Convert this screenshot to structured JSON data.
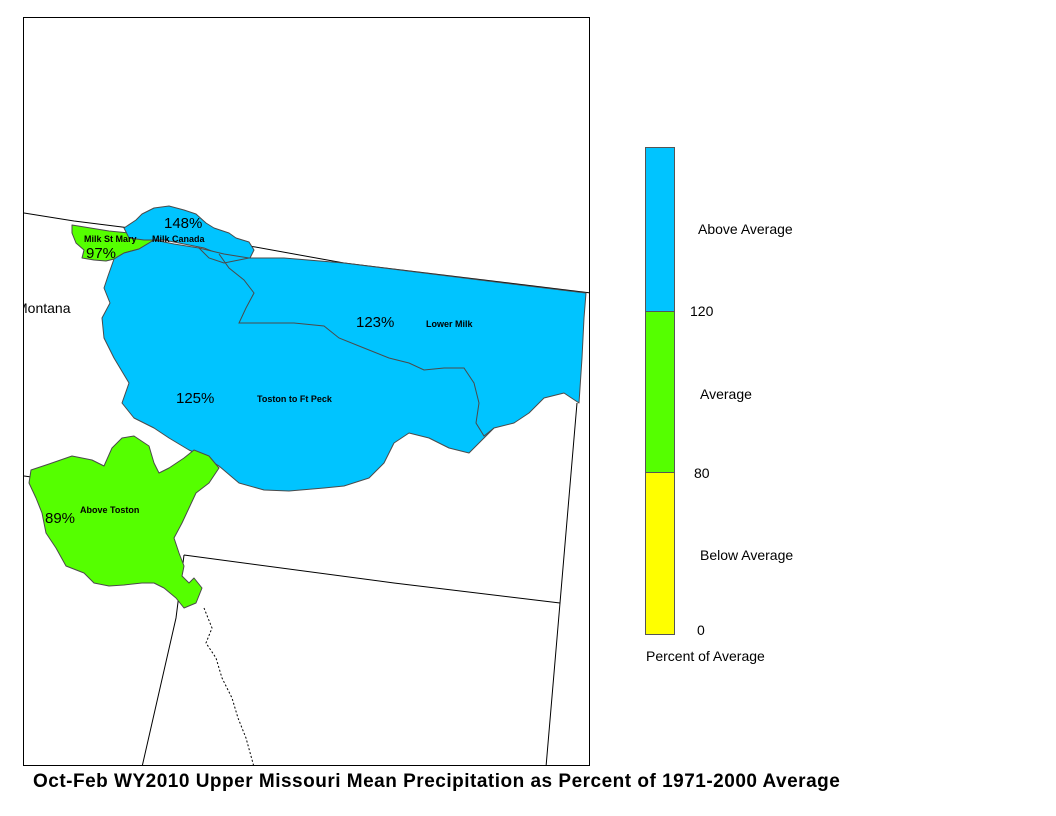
{
  "title": "Oct-Feb WY2010 Upper Missouri Mean Precipitation as Percent of 1971-2000 Average",
  "map": {
    "state_label": "Montana",
    "basins": [
      {
        "name": "Milk Canada",
        "percent": "148%",
        "category": "above"
      },
      {
        "name": "Milk St Mary",
        "percent": "97%",
        "category": "average"
      },
      {
        "name": "Lower Milk",
        "percent": "123%",
        "category": "above"
      },
      {
        "name": "Toston to Ft Peck",
        "percent": "125%",
        "category": "above"
      },
      {
        "name": "Above Toston",
        "percent": "89%",
        "category": "average"
      }
    ]
  },
  "legend": {
    "title": "Percent of Average",
    "categories": [
      {
        "label": "Above Average",
        "color": "#00c4ff",
        "min": 120,
        "max": null
      },
      {
        "label": "Average",
        "color": "#55ff00",
        "min": 80,
        "max": 120
      },
      {
        "label": "Below Average",
        "color": "#ffff00",
        "min": 0,
        "max": 80
      }
    ],
    "tick_labels": [
      "120",
      "80",
      "0"
    ]
  },
  "colors": {
    "above": "#00c4ff",
    "average": "#55ff00",
    "below": "#ffff00"
  }
}
